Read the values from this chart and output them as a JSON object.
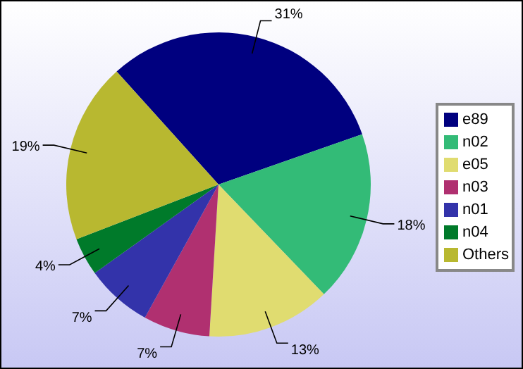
{
  "chart_data": {
    "type": "pie",
    "categories": [
      "e89",
      "n02",
      "e05",
      "n03",
      "n01",
      "n04",
      "Others"
    ],
    "values": [
      31,
      18,
      13,
      7,
      7,
      4,
      19
    ],
    "colors": [
      "#00007f",
      "#33bb77",
      "#e0dc70",
      "#b03070",
      "#3333aa",
      "#007a2a",
      "#b8b830"
    ],
    "value_labels": [
      "31%",
      "18%",
      "13%",
      "7%",
      "7%",
      "4%",
      "19%"
    ],
    "legend": "right"
  }
}
